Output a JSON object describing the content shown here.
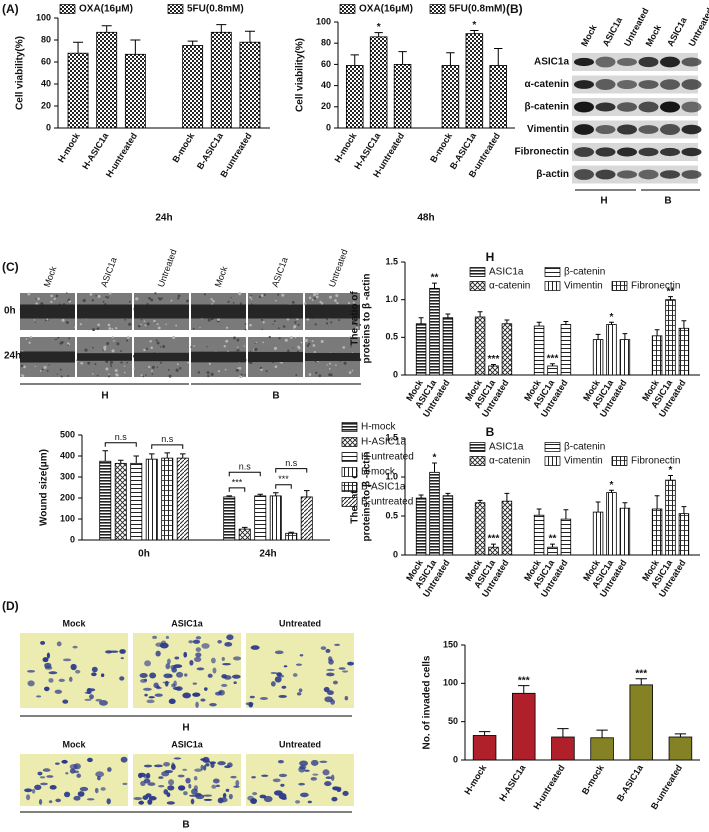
{
  "panel_labels": [
    "(A)",
    "(B)",
    "(C)",
    "(D)"
  ],
  "blot": {
    "lanes": [
      "Mock",
      "ASIC1a",
      "Untreated",
      "Mock",
      "ASIC1a",
      "Untreated"
    ],
    "proteins": [
      "ASIC1a",
      "α-catenin",
      "β-catenin",
      "Vimentin",
      "Fibronectin",
      "β-actin"
    ],
    "groups": [
      "H",
      "B"
    ]
  },
  "wound_images": {
    "columns": [
      "Mock",
      "ASIC1a",
      "Untreated",
      "Mock",
      "ASIC1a",
      "Untreated"
    ],
    "rows": [
      "0h",
      "24h"
    ],
    "groups": [
      "H",
      "B"
    ]
  },
  "invasion_images": {
    "columns": [
      "Mock",
      "ASIC1a",
      "Untreated"
    ],
    "groups": [
      "H",
      "B"
    ]
  },
  "chart_data": [
    {
      "type": "bar",
      "ylabel": "Cell viability(%)",
      "xlabel": "24h",
      "categories": [
        "H-mock",
        "H-ASIC1a",
        "H-untreated",
        "B-mock",
        "B-ASIC1a",
        "B-untreated"
      ],
      "series": [
        {
          "name": "OXA(16μM)",
          "pattern": "checker",
          "values": [
            68,
            87,
            67,
            null,
            null,
            null
          ],
          "errors": [
            10,
            6,
            13,
            null,
            null,
            null
          ]
        },
        {
          "name": "5FU(0.8mM)",
          "pattern": "checker",
          "values": [
            null,
            null,
            null,
            75,
            87,
            78
          ],
          "errors": [
            null,
            null,
            null,
            4,
            7,
            10
          ]
        }
      ],
      "ylim": [
        0,
        100
      ],
      "yticks": [
        0,
        20,
        40,
        60,
        80,
        100
      ]
    },
    {
      "type": "bar",
      "ylabel": "Cell viability(%)",
      "xlabel": "48h",
      "categories": [
        "H-mock",
        "H-ASIC1a",
        "H-untreated",
        "B-mock",
        "B-ASIC1a",
        "B-untreated"
      ],
      "series": [
        {
          "name": "OXA(16μM)",
          "pattern": "checker",
          "values": [
            59,
            86,
            60,
            null,
            null,
            null
          ],
          "errors": [
            10,
            4,
            12,
            null,
            null,
            null
          ]
        },
        {
          "name": "5FU(0.8mM)",
          "pattern": "checker",
          "values": [
            null,
            null,
            null,
            59,
            89,
            59
          ],
          "errors": [
            null,
            null,
            null,
            12,
            3,
            16
          ]
        }
      ],
      "significance": [
        null,
        "*",
        null,
        null,
        "*",
        null
      ],
      "ylim": [
        0,
        100
      ],
      "yticks": [
        0,
        20,
        40,
        60,
        80,
        100
      ]
    },
    {
      "type": "grouped_bar",
      "group_by": "series",
      "title": "H",
      "ylabel": [
        "The ratio of",
        "proteins to β -actin"
      ],
      "categories": [
        "Mock",
        "ASIC1a",
        "Untreated"
      ],
      "series": [
        {
          "name": "ASIC1a",
          "pattern": "dense",
          "values": [
            0.68,
            1.15,
            0.76
          ],
          "errors": [
            0.08,
            0.07,
            0.05
          ],
          "significance": [
            null,
            "**",
            null
          ]
        },
        {
          "name": "α-catenin",
          "pattern": "cross",
          "values": [
            0.77,
            0.12,
            0.68
          ],
          "errors": [
            0.07,
            0.02,
            0.05
          ],
          "significance": [
            null,
            "***",
            null
          ]
        },
        {
          "name": "β-catenin",
          "pattern": "hlines",
          "values": [
            0.65,
            0.12,
            0.67
          ],
          "errors": [
            0.05,
            0.03,
            0.04
          ],
          "significance": [
            null,
            "***",
            null
          ]
        },
        {
          "name": "Vimentin",
          "pattern": "vlines",
          "values": [
            0.47,
            0.67,
            0.47
          ],
          "errors": [
            0.07,
            0.03,
            0.08
          ],
          "significance": [
            null,
            "*",
            null
          ]
        },
        {
          "name": "Fibronectin",
          "pattern": "lattice",
          "values": [
            0.52,
            1.0,
            0.62
          ],
          "errors": [
            0.08,
            0.04,
            0.1
          ],
          "significance": [
            null,
            "**",
            null
          ]
        }
      ],
      "ylim": [
        0,
        1.5
      ],
      "yticks": [
        0,
        0.5,
        {
          "value": 1,
          "label": "1.0"
        },
        1.5
      ]
    },
    {
      "type": "grouped_bar",
      "group_by": "series",
      "title": "B",
      "ylabel": [
        "The ratio of",
        "proteins to β -actin"
      ],
      "categories": [
        "Mock",
        "ASIC1a",
        "Untreated"
      ],
      "series": [
        {
          "name": "ASIC1a",
          "pattern": "dense",
          "values": [
            0.73,
            1.06,
            0.76
          ],
          "errors": [
            0.04,
            0.12,
            0.03
          ],
          "significance": [
            null,
            "*",
            null
          ]
        },
        {
          "name": "α-catenin",
          "pattern": "cross",
          "values": [
            0.67,
            0.1,
            0.69
          ],
          "errors": [
            0.03,
            0.04,
            0.1
          ],
          "significance": [
            null,
            "***",
            null
          ]
        },
        {
          "name": "β-catenin",
          "pattern": "hlines",
          "values": [
            0.51,
            0.1,
            0.46
          ],
          "errors": [
            0.08,
            0.04,
            0.12
          ],
          "significance": [
            null,
            "**",
            null
          ]
        },
        {
          "name": "Vimentin",
          "pattern": "vlines",
          "values": [
            0.55,
            0.8,
            0.6
          ],
          "errors": [
            0.13,
            0.03,
            0.07
          ],
          "significance": [
            null,
            "*",
            null
          ]
        },
        {
          "name": "Fibronectin",
          "pattern": "lattice",
          "values": [
            0.59,
            0.96,
            0.53
          ],
          "errors": [
            0.17,
            0.06,
            0.09
          ],
          "significance": [
            null,
            "*",
            null
          ]
        }
      ],
      "ylim": [
        0,
        1.5
      ],
      "yticks": [
        0,
        0.5,
        {
          "value": 1,
          "label": "1.0"
        },
        1.5
      ]
    },
    {
      "type": "grouped_bar",
      "group_by": "categories",
      "ylabel": "Wound size(μm)",
      "categories": [
        "0h",
        "24h"
      ],
      "series": [
        {
          "name": "H-mock",
          "pattern": "dense",
          "values": [
            375,
            205
          ],
          "errors": [
            50,
            5
          ]
        },
        {
          "name": "H-ASIC1a",
          "pattern": "cross",
          "values": [
            365,
            52
          ],
          "errors": [
            15,
            8
          ]
        },
        {
          "name": "H-untreated",
          "pattern": "hlines",
          "values": [
            365,
            210
          ],
          "errors": [
            35,
            8
          ]
        },
        {
          "name": "B-mock",
          "pattern": "vlines",
          "values": [
            385,
            210
          ],
          "errors": [
            25,
            15
          ]
        },
        {
          "name": "B-ASIC1a",
          "pattern": "lattice",
          "values": [
            390,
            32
          ],
          "errors": [
            25,
            5
          ]
        },
        {
          "name": "B-untreated",
          "pattern": "diag",
          "values": [
            390,
            205
          ],
          "errors": [
            20,
            30
          ]
        }
      ],
      "comparisons": [
        [
          {
            "label": "n.s",
            "from": "H-mock",
            "to": "H-untreated"
          },
          {
            "label": "n.s",
            "from": "B-mock",
            "to": "B-untreated"
          }
        ],
        [
          {
            "label": "n.s",
            "from": "H-mock",
            "to": "H-untreated"
          },
          {
            "label": "***",
            "from": "H-mock",
            "to": "H-ASIC1a"
          },
          {
            "label": "n.s",
            "from": "B-mock",
            "to": "B-untreated"
          },
          {
            "label": "***",
            "from": "B-mock",
            "to": "B-ASIC1a"
          }
        ]
      ],
      "ylim": [
        0,
        500
      ],
      "yticks": [
        0,
        100,
        200,
        300,
        400,
        500
      ]
    },
    {
      "type": "bar",
      "ylabel": "No. of invaded cells",
      "categories": [
        "H-mock",
        "H-ASIC1a",
        "H-untreated",
        "B-mock",
        "B-ASIC1a",
        "B-untreated"
      ],
      "values": [
        32,
        87,
        30,
        29,
        98,
        30
      ],
      "errors": [
        5,
        10,
        11,
        10,
        8,
        4
      ],
      "colors": [
        "#b0202a",
        "#b0202a",
        "#b0202a",
        "#848224",
        "#848224",
        "#848224"
      ],
      "significance": [
        null,
        "***",
        null,
        null,
        "***",
        null
      ],
      "ylim": [
        0,
        150
      ],
      "yticks": [
        0,
        50,
        100,
        150
      ]
    }
  ]
}
